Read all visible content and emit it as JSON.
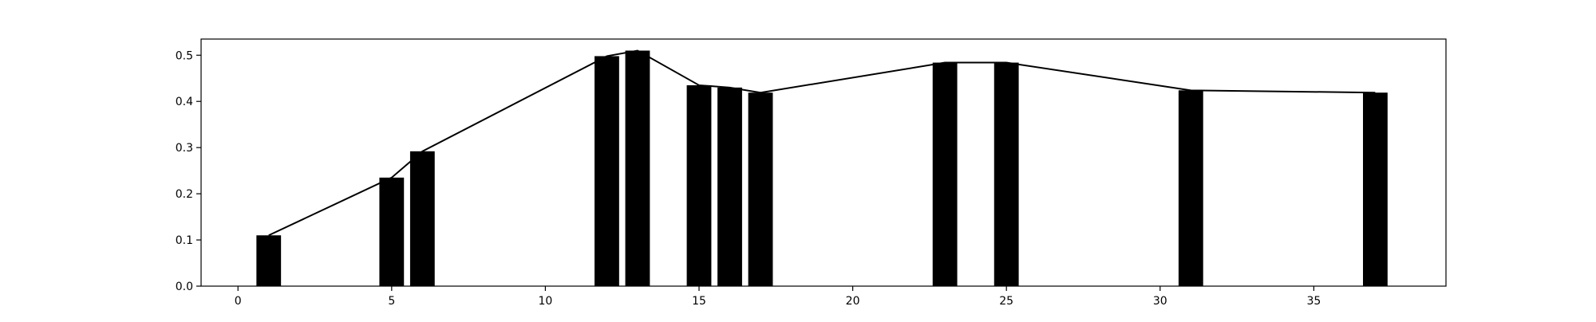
{
  "chart_data": {
    "type": "bar",
    "x": [
      1,
      5,
      6,
      12,
      13,
      15,
      16,
      17,
      23,
      25,
      31,
      37
    ],
    "values": [
      0.11,
      0.235,
      0.292,
      0.498,
      0.51,
      0.435,
      0.43,
      0.419,
      0.484,
      0.484,
      0.424,
      0.419
    ],
    "line_overlay": true,
    "xlim": [
      -1.2,
      39.3
    ],
    "ylim": [
      0,
      0.535
    ],
    "xticks": [
      0,
      5,
      10,
      15,
      20,
      25,
      30,
      35
    ],
    "yticks": [
      0.0,
      0.1,
      0.2,
      0.3,
      0.4,
      0.5
    ],
    "xtick_labels": [
      "0",
      "5",
      "10",
      "15",
      "20",
      "25",
      "30",
      "35"
    ],
    "ytick_labels": [
      "0.0",
      "0.1",
      "0.2",
      "0.3",
      "0.4",
      "0.5"
    ],
    "grid": false,
    "legend": "none",
    "colors": {
      "bar": "#000000",
      "line": "#000000",
      "axis": "#000000",
      "background": "#ffffff"
    }
  }
}
